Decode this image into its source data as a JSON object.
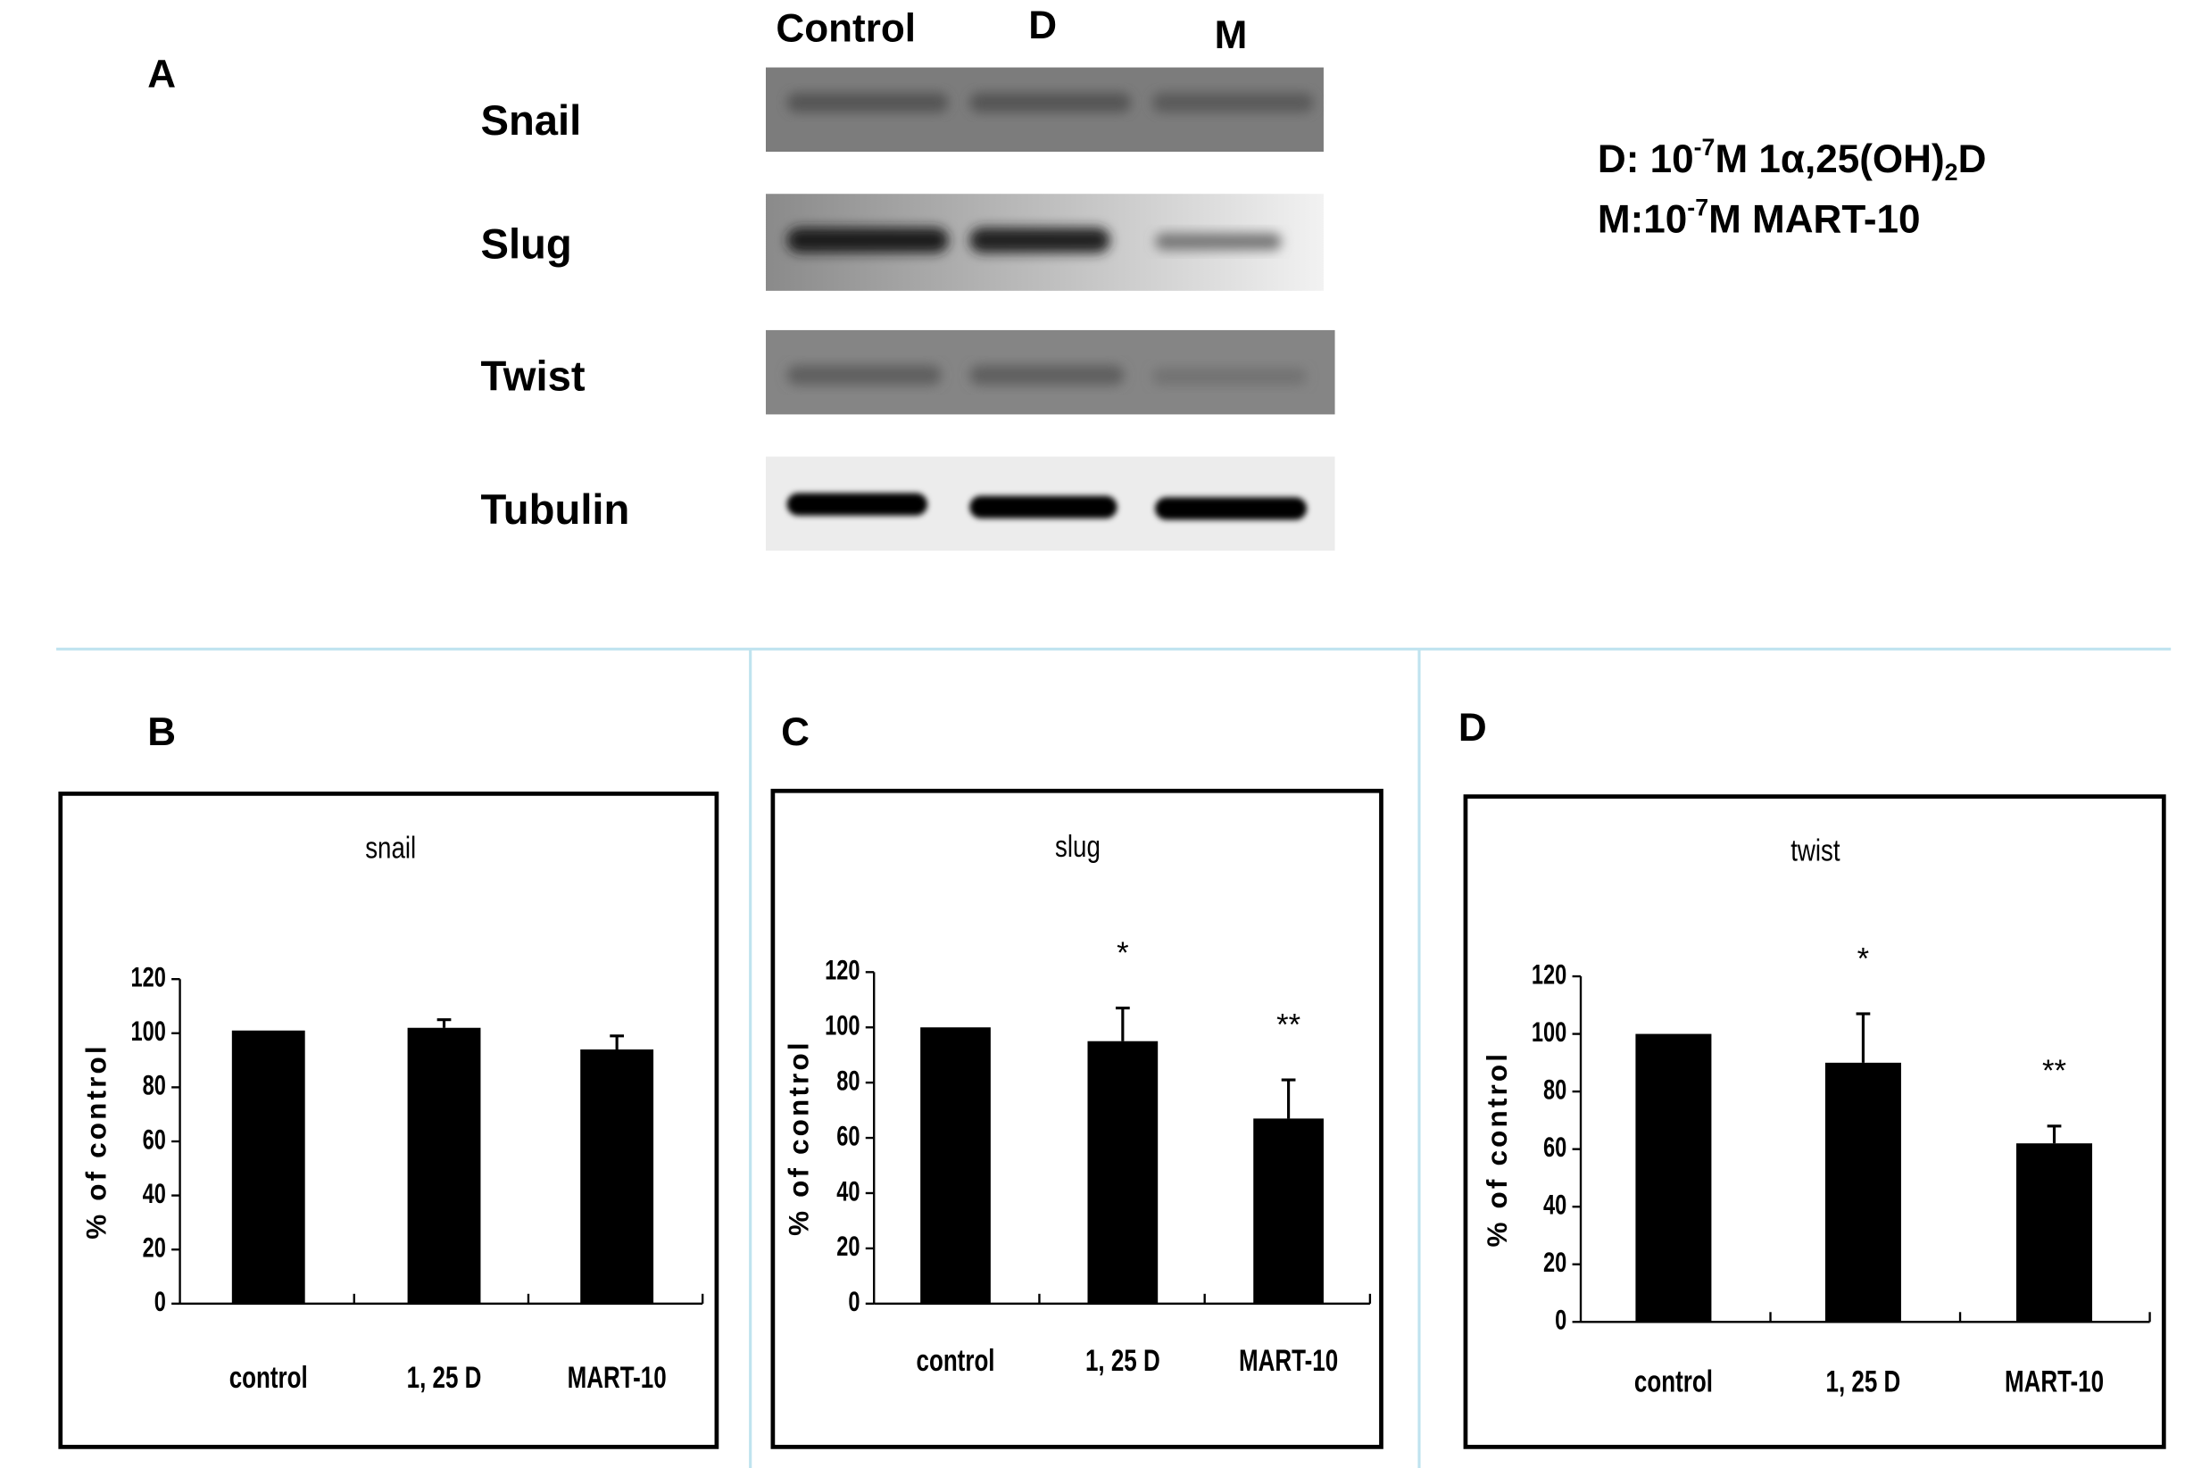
{
  "panel_a": {
    "label": "A",
    "lanes": [
      "Control",
      "D",
      "M"
    ],
    "rows": [
      "Snail",
      "Slug",
      "Twist",
      "Tubulin"
    ],
    "legend": [
      [
        "D: 10",
        "-7",
        "M 1α,25(OH)",
        "2",
        "D"
      ],
      [
        "M:10",
        "-7",
        "M MART-10"
      ]
    ]
  },
  "chart_data": [
    {
      "type": "bar",
      "panel": "B",
      "title": "snail",
      "y_label": "% of control",
      "categories": [
        "control",
        "1, 25 D",
        "MART-10"
      ],
      "values": [
        101,
        102,
        94
      ],
      "errors": [
        null,
        3,
        5
      ],
      "color": "#000000",
      "ylim": [
        0,
        120
      ],
      "yticks": [
        0,
        20,
        40,
        60,
        80,
        100,
        120
      ]
    },
    {
      "type": "bar",
      "panel": "C",
      "title": "slug",
      "y_label": "% of control",
      "categories": [
        "control",
        "1, 25 D",
        "MART-10"
      ],
      "values": [
        100,
        95,
        67
      ],
      "errors": [
        null,
        12,
        14
      ],
      "annotations": [
        null,
        "*",
        "**"
      ],
      "color": "#000000",
      "ylim": [
        0,
        120
      ],
      "yticks": [
        0,
        20,
        40,
        60,
        80,
        100,
        120
      ]
    },
    {
      "type": "bar",
      "panel": "D",
      "title": "twist",
      "y_label": "% of control",
      "categories": [
        "control",
        "1, 25 D",
        "MART-10"
      ],
      "values": [
        100,
        90,
        62
      ],
      "errors": [
        null,
        17,
        6
      ],
      "annotations": [
        null,
        "*",
        "**"
      ],
      "color": "#000000",
      "ylim": [
        0,
        120
      ],
      "yticks": [
        0,
        20,
        40,
        60,
        80,
        100,
        120
      ]
    }
  ]
}
